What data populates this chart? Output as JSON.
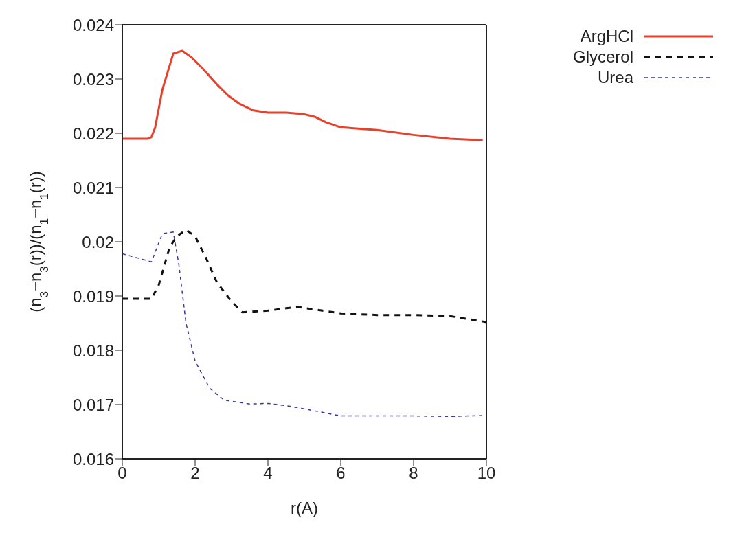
{
  "chart_data": {
    "type": "line",
    "xlabel": "r(A)",
    "ylabel": "(n$_{3}$−n$_{3}$(r))/(n$_{1}$−n$_{1}$(r))",
    "xlim": [
      0,
      10
    ],
    "xticks": [
      0,
      2,
      4,
      6,
      8,
      10
    ],
    "ylim": [
      0.016,
      0.024
    ],
    "yticks": [
      0.016,
      0.017,
      0.018,
      0.019,
      0.02,
      0.021,
      0.022,
      0.023,
      0.024
    ],
    "legend": "top right",
    "grid": false,
    "marker": "none",
    "series": [
      {
        "name": "ArgHCl",
        "color": "#e8402a",
        "line_style": "solid",
        "x": [
          0,
          0.7,
          0.8,
          0.9,
          1.1,
          1.4,
          1.65,
          1.9,
          2.2,
          2.6,
          2.9,
          3.2,
          3.6,
          4,
          4.5,
          5,
          5.3,
          5.6,
          6,
          7,
          8,
          9,
          9.9
        ],
        "values": [
          0.0219,
          0.0219,
          0.02193,
          0.0221,
          0.0228,
          0.02347,
          0.02352,
          0.0234,
          0.0232,
          0.0229,
          0.0227,
          0.02255,
          0.02242,
          0.02238,
          0.02238,
          0.02235,
          0.0223,
          0.0222,
          0.02211,
          0.02206,
          0.02197,
          0.0219,
          0.02187
        ]
      },
      {
        "name": "Glycerol",
        "color": "#111111",
        "line_style": "dashed",
        "x": [
          0,
          0.8,
          1.0,
          1.3,
          1.5,
          1.75,
          2,
          2.3,
          2.6,
          3,
          3.3,
          4,
          4.8,
          5.5,
          6,
          7,
          8,
          9,
          10
        ],
        "values": [
          0.01895,
          0.01895,
          0.0192,
          0.0199,
          0.0201,
          0.02022,
          0.0201,
          0.0197,
          0.01925,
          0.0189,
          0.0187,
          0.01873,
          0.0188,
          0.01873,
          0.01868,
          0.01865,
          0.01865,
          0.01863,
          0.01852
        ]
      },
      {
        "name": "Urea",
        "color": "#3a38a0",
        "line_style": "dotted",
        "x": [
          0,
          0.8,
          1.1,
          1.4,
          1.55,
          1.75,
          2,
          2.4,
          2.8,
          3.5,
          4,
          4.5,
          5,
          6,
          7,
          8,
          9,
          10
        ],
        "values": [
          0.01978,
          0.01963,
          0.02015,
          0.02018,
          0.0196,
          0.0185,
          0.0178,
          0.0173,
          0.01708,
          0.01701,
          0.01702,
          0.01698,
          0.01692,
          0.01679,
          0.01679,
          0.01679,
          0.01678,
          0.0168
        ]
      }
    ]
  }
}
